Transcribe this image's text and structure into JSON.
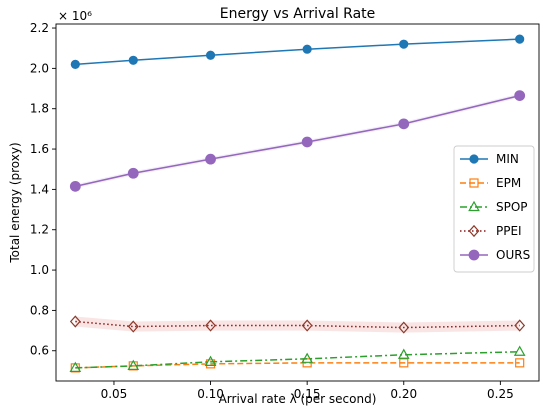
{
  "chart_data": {
    "type": "line",
    "title": "Energy vs Arrival Rate",
    "xlabel": "Arrival rate λ (per second)",
    "ylabel": "Total energy (proxy)",
    "y_multiplier_label": "× 10⁶",
    "x": [
      0.03,
      0.06,
      0.1,
      0.15,
      0.2,
      0.26
    ],
    "xlim": [
      0.02,
      0.27
    ],
    "ylim": [
      0.45,
      2.22
    ],
    "xticks": [
      0.05,
      0.1,
      0.15,
      0.2,
      0.25
    ],
    "xtick_labels": [
      "0.05",
      "0.10",
      "0.15",
      "0.20",
      "0.25"
    ],
    "yticks": [
      0.6,
      0.8,
      1.0,
      1.2,
      1.4,
      1.6,
      1.8,
      2.0,
      2.2
    ],
    "ytick_labels": [
      "0.6",
      "0.8",
      "1.0",
      "1.2",
      "1.4",
      "1.6",
      "1.8",
      "2.0",
      "2.2"
    ],
    "grid": false,
    "legend_position": "center-right",
    "series": [
      {
        "name": "MIN",
        "values": [
          2.02,
          2.04,
          2.065,
          2.095,
          2.12,
          2.145
        ],
        "color": "#1f77b4",
        "marker": "circle-filled",
        "line": "solid"
      },
      {
        "name": "EPM",
        "values": [
          0.515,
          0.525,
          0.535,
          0.54,
          0.54,
          0.54
        ],
        "color": "#ff7f0e",
        "marker": "square-open",
        "line": "dashed"
      },
      {
        "name": "SPOP",
        "values": [
          0.515,
          0.525,
          0.545,
          0.56,
          0.58,
          0.595
        ],
        "color": "#2ca02c",
        "marker": "triangle-open",
        "line": "dashdot"
      },
      {
        "name": "PPEI",
        "values": [
          0.745,
          0.72,
          0.725,
          0.725,
          0.715,
          0.725
        ],
        "color": "#d62728",
        "marker": "diamond-open",
        "line": "dotted",
        "band": 0.025
      },
      {
        "name": "OURS",
        "values": [
          1.415,
          1.48,
          1.55,
          1.635,
          1.725,
          1.865
        ],
        "color": "#9467bd",
        "marker": "circle-filled-large",
        "line": "solid",
        "band": 0.01
      }
    ]
  }
}
